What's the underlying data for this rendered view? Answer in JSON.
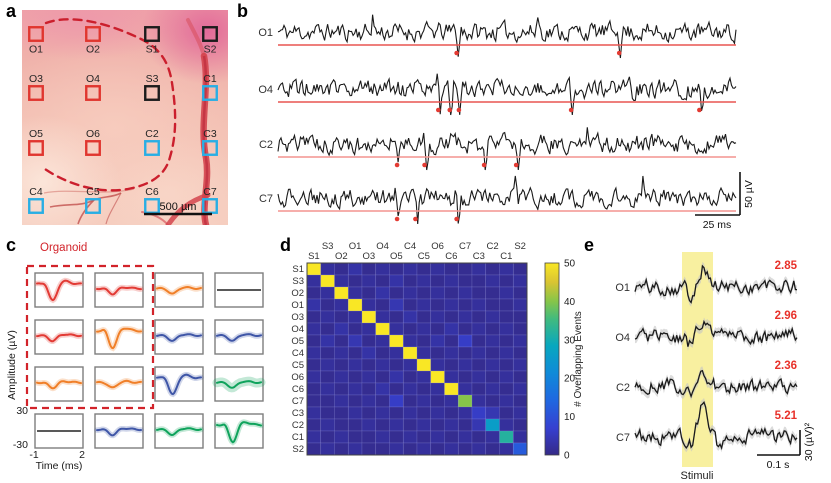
{
  "panels": {
    "a": {
      "letter": "a",
      "scale_bar": "500 µm",
      "organoid_outline_color": "#cb1f2d",
      "electrode_colors": {
        "red": "#e0362f",
        "black": "#1c1c1c",
        "cyan": "#29aee4"
      },
      "electrodes": [
        {
          "label": "O1",
          "color": "red",
          "row": 0,
          "col": 0,
          "side": "below"
        },
        {
          "label": "O2",
          "color": "red",
          "row": 0,
          "col": 1,
          "side": "below"
        },
        {
          "label": "S1",
          "color": "black",
          "row": 0,
          "col": 2,
          "side": "below"
        },
        {
          "label": "S2",
          "color": "black",
          "row": 0,
          "col": 3,
          "side": "below"
        },
        {
          "label": "O3",
          "color": "red",
          "row": 1,
          "col": 0,
          "side": "above"
        },
        {
          "label": "O4",
          "color": "red",
          "row": 1,
          "col": 1,
          "side": "above"
        },
        {
          "label": "S3",
          "color": "black",
          "row": 1,
          "col": 2,
          "side": "above"
        },
        {
          "label": "C1",
          "color": "cyan",
          "row": 1,
          "col": 3,
          "side": "above"
        },
        {
          "label": "O5",
          "color": "red",
          "row": 2,
          "col": 0,
          "side": "above"
        },
        {
          "label": "O6",
          "color": "red",
          "row": 2,
          "col": 1,
          "side": "above"
        },
        {
          "label": "C2",
          "color": "cyan",
          "row": 2,
          "col": 2,
          "side": "above"
        },
        {
          "label": "C3",
          "color": "cyan",
          "row": 2,
          "col": 3,
          "side": "above"
        },
        {
          "label": "C4",
          "color": "cyan",
          "row": 3,
          "col": 0,
          "side": "above"
        },
        {
          "label": "C5",
          "color": "cyan",
          "row": 3,
          "col": 1,
          "side": "above"
        },
        {
          "label": "C6",
          "color": "cyan",
          "row": 3,
          "col": 2,
          "side": "above"
        },
        {
          "label": "C7",
          "color": "cyan",
          "row": 3,
          "col": 3,
          "side": "above"
        }
      ]
    },
    "b": {
      "letter": "b",
      "vscale": "50 µV",
      "hscale": "25 ms",
      "dot_color": "#e33b33",
      "traces": [
        {
          "label": "O1",
          "line_color": "#e85550",
          "events": [
            0.39,
            0.745
          ]
        },
        {
          "label": "O4",
          "line_color": "#e85550",
          "events": [
            0.35,
            0.375,
            0.395,
            0.64,
            0.92
          ]
        },
        {
          "label": "C2",
          "line_color": "#f4938f",
          "events": [
            0.26,
            0.32,
            0.45,
            0.52
          ]
        },
        {
          "label": "C7",
          "line_color": "#f4938f",
          "events": [
            0.26,
            0.3,
            0.39
          ]
        }
      ]
    },
    "c": {
      "letter": "c",
      "organoid_label": "Organoid",
      "ylabel": "Amplitude (µV)",
      "xlabel": "Time (ms)",
      "yticks": [
        "30",
        "-30"
      ],
      "xticks": [
        "-1",
        "2"
      ],
      "box_color": "#d2232a",
      "colors": {
        "red": "#e23a34",
        "orange": "#f07f28",
        "blue": "#3f56a7",
        "green": "#0fa35c",
        "black": "#222222"
      },
      "grid": [
        [
          {
            "color": "red",
            "shape": "deep"
          },
          {
            "color": "red",
            "shape": "small"
          },
          {
            "color": "orange",
            "shape": "small"
          },
          {
            "color": "black",
            "shape": "flat"
          }
        ],
        [
          {
            "color": "red",
            "shape": "small"
          },
          {
            "color": "orange",
            "shape": "deep"
          },
          {
            "color": "blue",
            "shape": "small"
          },
          {
            "color": "blue",
            "shape": "small"
          }
        ],
        [
          {
            "color": "orange",
            "shape": "small"
          },
          {
            "color": "orange",
            "shape": "small"
          },
          {
            "color": "blue",
            "shape": "deep"
          },
          {
            "color": "green",
            "shape": "small",
            "wide": true
          }
        ],
        [
          {
            "color": "black",
            "shape": "flat"
          },
          {
            "color": "blue",
            "shape": "small"
          },
          {
            "color": "green",
            "shape": "small"
          },
          {
            "color": "green",
            "shape": "deep"
          }
        ]
      ]
    },
    "d": {
      "letter": "d"
    },
    "e": {
      "letter": "e",
      "stimuli_label": "Stimuli",
      "hscale": "0.1 s",
      "vscale": "30 (µV)²",
      "band_color": "#f8f0a0",
      "value_color": "#e8312a",
      "traces": [
        {
          "label": "O1",
          "value": "2.85"
        },
        {
          "label": "O4",
          "value": "2.96"
        },
        {
          "label": "C2",
          "value": "2.36"
        },
        {
          "label": "C7",
          "value": "5.21"
        }
      ]
    }
  },
  "chart_data": {
    "type": "heatmap",
    "title": "",
    "colorbar_label": "# Overlapping Events",
    "colorbar_ticks": [
      0,
      10,
      20,
      30,
      40,
      50
    ],
    "vmin": 0,
    "vmax": 50,
    "colormap": "parula",
    "row_labels": [
      "S1",
      "S3",
      "O2",
      "O1",
      "O3",
      "O4",
      "O5",
      "C4",
      "C5",
      "O6",
      "C6",
      "C7",
      "C3",
      "C2",
      "C1",
      "S2"
    ],
    "col_labels": [
      "S1",
      "S3",
      "O2",
      "O1",
      "O3",
      "O4",
      "O5",
      "C4",
      "C5",
      "O6",
      "C6",
      "C7",
      "C3",
      "C2",
      "C1",
      "S2"
    ],
    "matrix": [
      [
        50,
        2,
        1,
        3,
        1,
        2,
        1,
        2,
        1,
        2,
        1,
        1,
        2,
        1,
        2,
        1
      ],
      [
        2,
        50,
        2,
        1,
        2,
        1,
        3,
        1,
        2,
        1,
        2,
        1,
        1,
        2,
        1,
        2
      ],
      [
        1,
        2,
        50,
        2,
        1,
        3,
        1,
        2,
        1,
        2,
        1,
        2,
        1,
        1,
        2,
        1
      ],
      [
        3,
        1,
        2,
        50,
        2,
        1,
        4,
        1,
        2,
        1,
        2,
        1,
        2,
        1,
        1,
        2
      ],
      [
        1,
        2,
        1,
        2,
        50,
        2,
        1,
        3,
        1,
        2,
        1,
        2,
        1,
        2,
        1,
        1
      ],
      [
        2,
        1,
        3,
        1,
        2,
        50,
        2,
        1,
        2,
        1,
        3,
        1,
        2,
        1,
        2,
        1
      ],
      [
        1,
        3,
        1,
        4,
        1,
        2,
        50,
        2,
        1,
        3,
        1,
        6,
        1,
        2,
        1,
        2
      ],
      [
        2,
        1,
        2,
        1,
        3,
        1,
        2,
        50,
        2,
        1,
        2,
        1,
        2,
        1,
        2,
        1
      ],
      [
        1,
        2,
        1,
        2,
        1,
        2,
        1,
        2,
        50,
        2,
        1,
        2,
        1,
        2,
        1,
        2
      ],
      [
        2,
        1,
        2,
        1,
        2,
        1,
        3,
        1,
        2,
        50,
        2,
        1,
        2,
        1,
        2,
        1
      ],
      [
        1,
        2,
        1,
        2,
        1,
        3,
        1,
        2,
        1,
        2,
        50,
        2,
        1,
        2,
        1,
        2
      ],
      [
        1,
        1,
        2,
        1,
        2,
        1,
        6,
        1,
        2,
        1,
        2,
        40,
        2,
        1,
        2,
        1
      ],
      [
        2,
        1,
        1,
        2,
        1,
        2,
        1,
        2,
        1,
        2,
        1,
        2,
        6,
        4,
        1,
        2
      ],
      [
        1,
        2,
        1,
        1,
        2,
        1,
        2,
        1,
        2,
        1,
        2,
        1,
        4,
        26,
        2,
        1
      ],
      [
        2,
        1,
        2,
        1,
        1,
        2,
        1,
        2,
        1,
        2,
        1,
        2,
        1,
        2,
        32,
        2
      ],
      [
        1,
        2,
        1,
        2,
        1,
        1,
        2,
        1,
        2,
        1,
        2,
        1,
        2,
        1,
        2,
        12
      ]
    ]
  }
}
